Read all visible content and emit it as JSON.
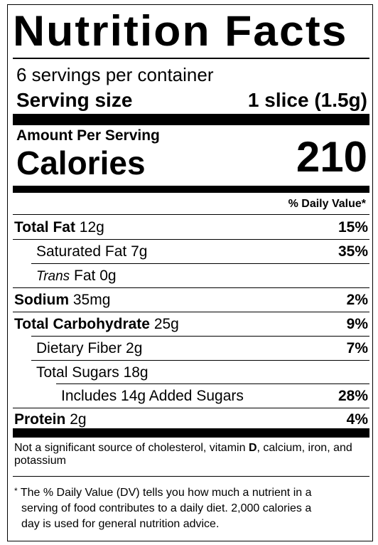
{
  "label": {
    "title": "Nutrition Facts",
    "servings_per_container": "6 servings per container",
    "serving_size_label": "Serving size",
    "serving_size_value": "1 slice (1.5g)",
    "amount_per_serving": "Amount Per Serving",
    "calories_label": "Calories",
    "calories_value": "210",
    "daily_value_header": "% Daily Value*"
  },
  "nutrients": {
    "total_fat": {
      "name": "Total Fat",
      "amount": "12g",
      "dv": "15%"
    },
    "saturated_fat": {
      "name": "Saturated Fat",
      "amount": "7g",
      "dv": "35%"
    },
    "trans_fat": {
      "name_italic": "Trans",
      "name": "Fat",
      "amount": "0g"
    },
    "sodium": {
      "name": "Sodium",
      "amount": "35mg",
      "dv": "2%"
    },
    "total_carbohydrate": {
      "name": "Total Carbohydrate",
      "amount": "25g",
      "dv": "9%"
    },
    "dietary_fiber": {
      "name": "Dietary Fiber",
      "amount": "2g",
      "dv": "7%"
    },
    "total_sugars": {
      "name": "Total Sugars",
      "amount": "18g"
    },
    "added_sugars": {
      "name": "Includes 14g Added Sugars",
      "dv": "28%"
    },
    "protein": {
      "name": "Protein",
      "amount": "2g",
      "dv": "4%"
    }
  },
  "footnotes": {
    "not_significant_pre": "Not a significant source of cholesterol, vitamin ",
    "not_significant_bold": "D",
    "not_significant_post": ", calcium, iron, and potassium",
    "dv_marker": "*",
    "dv_line1": "The % Daily Value (DV) tells you how much a nutrient in a",
    "dv_line2": "serving of food contributes to a daily diet. 2,000 calories a",
    "dv_line3": "day is used for general nutrition advice."
  }
}
